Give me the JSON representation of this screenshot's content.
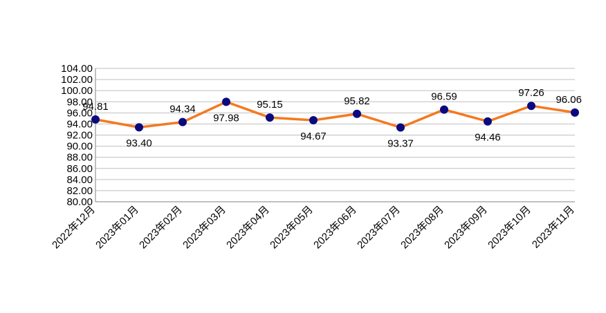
{
  "chart_data": {
    "type": "line",
    "categories": [
      "2022年12月",
      "2023年01月",
      "2023年02月",
      "2023年03月",
      "2023年04月",
      "2023年05月",
      "2023年06月",
      "2023年07月",
      "2023年08月",
      "2023年09月",
      "2023年10月",
      "2023年11月"
    ],
    "series": [
      {
        "values": [
          94.81,
          93.4,
          94.34,
          97.98,
          95.15,
          94.67,
          95.82,
          93.37,
          96.59,
          94.46,
          97.26,
          96.06
        ],
        "labels": [
          "94.81",
          "93.40",
          "94.34",
          "97.98",
          "95.15",
          "94.67",
          "95.82",
          "93.37",
          "96.59",
          "94.46",
          "97.26",
          "96.06"
        ]
      }
    ],
    "y_ticks": [
      "80.00",
      "82.00",
      "84.00",
      "86.00",
      "88.00",
      "90.00",
      "92.00",
      "94.00",
      "96.00",
      "98.00",
      "100.00",
      "102.00",
      "104.00"
    ],
    "ylim": [
      80,
      104
    ],
    "grid": true,
    "legend": "none",
    "colors": {
      "line": "#F47920",
      "marker": "#0A0A80",
      "grid": "#BFBFBF",
      "axis": "#808080"
    }
  }
}
